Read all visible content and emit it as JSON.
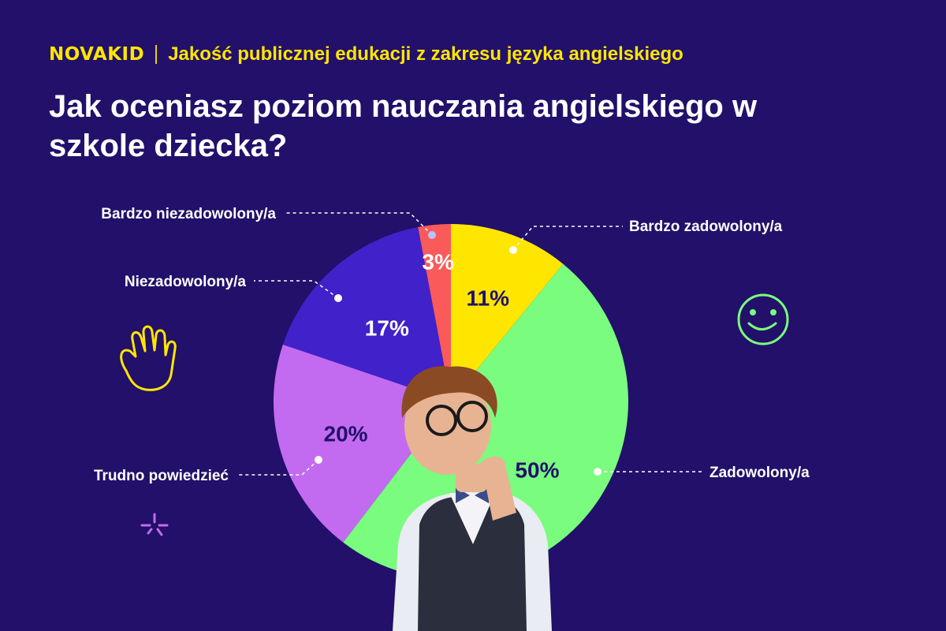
{
  "header": {
    "logo_text": "NOVAKID",
    "subtitle": "Jakość publicznej edukacji z zakresu języka angielskiego",
    "title": "Jak oceniasz poziom nauczania angielskiego w szkole dziecka?"
  },
  "chart_data": {
    "type": "pie",
    "title": "Jak oceniasz poziom nauczania angielskiego w szkole dziecka?",
    "start_angle_deg": 0,
    "direction": "clockwise",
    "slices": [
      {
        "label": "Bardzo zadowolony/a",
        "value": 11,
        "display": "11%",
        "color": "#ffe600",
        "pct_color": "#22106a"
      },
      {
        "label": "Zadowolony/a",
        "value": 50,
        "display": "50%",
        "color": "#7afc7e",
        "pct_color": "#22106a"
      },
      {
        "label": "Trudno powiedzieć",
        "value": 20,
        "display": "20%",
        "color": "#c36bf0",
        "pct_color": "#22106a"
      },
      {
        "label": "Niezadowolony/a",
        "value": 17,
        "display": "17%",
        "color": "#4121c9",
        "pct_color": "#ffffff"
      },
      {
        "label": "Bardzo niezadowolony/a",
        "value": 3,
        "display": "3%",
        "color": "#fb5a5a",
        "pct_color": "#ffffff"
      }
    ]
  },
  "decorations": {
    "hand": "waving-hand-icon",
    "smiley": "smiley-face-icon",
    "flower": "flower-icon",
    "child": "thinking-child-illustration"
  }
}
